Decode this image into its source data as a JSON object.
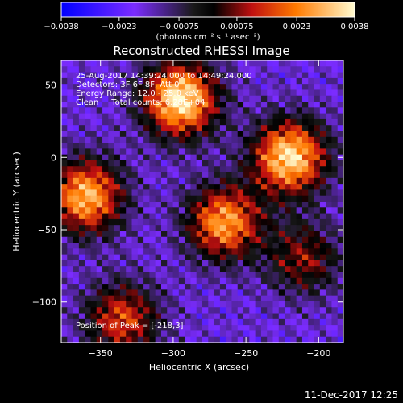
{
  "chart_data": {
    "type": "heatmap",
    "title": "Reconstructed RHESSI Image",
    "xlabel": "Heliocentric X (arcsec)",
    "ylabel": "Heliocentric Y (arcsec)",
    "xlim": [
      -377,
      -183
    ],
    "ylim": [
      -128,
      67
    ],
    "x_ticks": [
      -350,
      -300,
      -250,
      -200
    ],
    "x_tick_labels": [
      "−350",
      "−300",
      "−250",
      "−200"
    ],
    "y_ticks": [
      50,
      0,
      -50,
      -100
    ],
    "y_tick_labels": [
      "50",
      "0",
      "−50",
      "−100"
    ],
    "colorbar": {
      "min": -0.0038,
      "max": 0.0038,
      "ticks": [
        -0.0038,
        -0.0023,
        -0.00075,
        0.00075,
        0.0023,
        0.0038
      ],
      "tick_labels": [
        "−0.0038",
        "−0.0023",
        "−0.00075",
        "0.00075",
        "0.0023",
        "0.0038"
      ],
      "unit_label": "(photons cm⁻² s⁻¹ asec⁻²)"
    },
    "annotations": [
      "25-Aug-2017 14:39:24.000 to 14:49:24.000",
      "Detectors: 3F 6F 8F, Att 0",
      "Energy Range: 12.0 - 25.0 keV",
      "Clean     Total counts: 6.28E+04"
    ],
    "peak_label": "Position of Peak = [-218,3]",
    "peak": [
      -218,
      3
    ],
    "sources": [
      {
        "x": -295,
        "y": 40,
        "amplitude": 1.0
      },
      {
        "x": -220,
        "y": 0,
        "amplitude": 0.95
      },
      {
        "x": -360,
        "y": -27,
        "amplitude": 0.85
      },
      {
        "x": -265,
        "y": -45,
        "amplitude": 0.8
      },
      {
        "x": -335,
        "y": -112,
        "amplitude": 0.6
      },
      {
        "x": -210,
        "y": -70,
        "amplitude": 0.45
      }
    ]
  },
  "timestamp": "11-Dec-2017 12:25"
}
